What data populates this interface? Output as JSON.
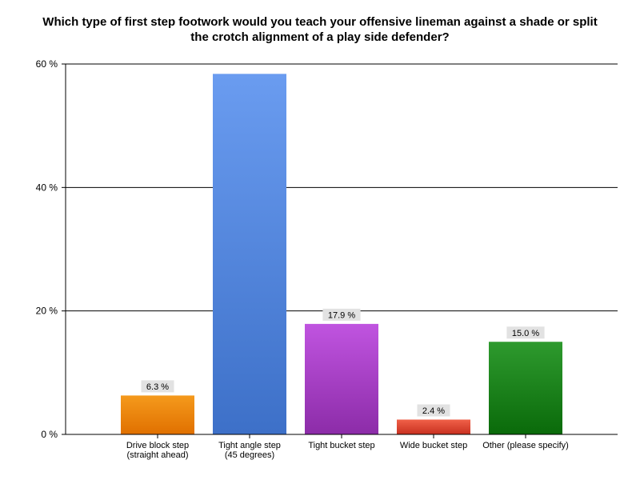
{
  "chart_data": {
    "type": "bar",
    "title_lines": [
      "Which type of first step footwork would you teach your offensive lineman against a shade or split",
      "the crotch alignment of a play side defender?"
    ],
    "xlabel": "",
    "ylabel": "",
    "ylim": [
      0,
      60
    ],
    "yticks": [
      0,
      20,
      40,
      60
    ],
    "ytick_labels": [
      "0 %",
      "20 %",
      "40 %",
      "60 %"
    ],
    "grid": true,
    "legend": "none",
    "categories": [
      [
        "Drive block step",
        "(straight ahead)"
      ],
      [
        "Tight angle step",
        "(45 degrees)"
      ],
      [
        "Tight bucket step"
      ],
      [
        "Wide bucket step"
      ],
      [
        "Other (please specify)"
      ]
    ],
    "values": [
      6.3,
      58.4,
      17.9,
      2.4,
      15.0
    ],
    "data_labels": [
      "6.3 %",
      "",
      "17.9 %",
      "2.4 %",
      "15.0 %"
    ],
    "colors": [
      [
        "#f59a1c",
        "#e07000"
      ],
      [
        "#6a9cf0",
        "#3d70c8"
      ],
      [
        "#c054e0",
        "#8c2ca8"
      ],
      [
        "#f06048",
        "#c83020"
      ],
      [
        "#2e9a2e",
        "#0a6a0a"
      ]
    ]
  }
}
